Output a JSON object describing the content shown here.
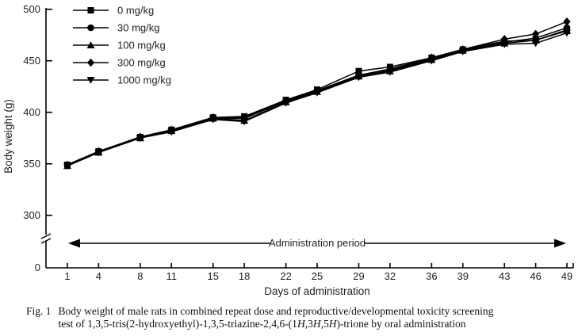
{
  "colors": {
    "line": "#000000",
    "tick_label": "#3a3a3a",
    "text": "#111111"
  },
  "chart_data": {
    "type": "line",
    "title": "",
    "xlabel": "Days of administration",
    "ylabel": "Body weight (g)",
    "x": [
      1,
      4,
      8,
      11,
      15,
      18,
      22,
      25,
      29,
      32,
      36,
      39,
      43,
      46,
      49
    ],
    "y_ticks": [
      500,
      450,
      400,
      350,
      300
    ],
    "y_origin_label": "0",
    "y_axis_break": true,
    "ylim": [
      300,
      500
    ],
    "grid": false,
    "legend_position": "top-left",
    "annotation": "Administration period",
    "series": [
      {
        "name": "0 mg/kg",
        "marker": "square",
        "values": [
          349,
          362,
          376,
          383,
          395,
          396,
          412,
          422,
          440,
          444,
          453,
          461,
          469,
          470,
          480
        ]
      },
      {
        "name": "30 mg/kg",
        "marker": "circle",
        "values": [
          349,
          362,
          376,
          382,
          394,
          394,
          411,
          421,
          436,
          441,
          452,
          460,
          468,
          472,
          482
        ]
      },
      {
        "name": "100 mg/kg",
        "marker": "triangle-up",
        "values": [
          348,
          361,
          375,
          382,
          394,
          392,
          410,
          420,
          435,
          440,
          451,
          460,
          467,
          470,
          479
        ]
      },
      {
        "name": "300 mg/kg",
        "marker": "diamond",
        "values": [
          349,
          362,
          376,
          383,
          395,
          395,
          411,
          421,
          436,
          442,
          453,
          461,
          471,
          476,
          488
        ]
      },
      {
        "name": "1000 mg/kg",
        "marker": "triangle-down",
        "values": [
          348,
          361,
          375,
          381,
          393,
          391,
          409,
          419,
          434,
          439,
          450,
          459,
          466,
          467,
          477
        ]
      }
    ]
  },
  "caption": {
    "fig_label": "Fig. 1",
    "line1": [
      {
        "t": "Body weight of male rats in combined repeat dose and reproductive/developmental toxicity screening",
        "i": false
      }
    ],
    "line2": [
      {
        "t": "test of 1,3,5-tris(2-hydroxyethyl)-1,3,5-triazine-2,4,6-(1",
        "i": false
      },
      {
        "t": "H",
        "i": true
      },
      {
        "t": ",3",
        "i": false
      },
      {
        "t": "H",
        "i": true
      },
      {
        "t": ",5",
        "i": false
      },
      {
        "t": "H",
        "i": true
      },
      {
        "t": ")-trione by oral administration",
        "i": false
      }
    ]
  }
}
